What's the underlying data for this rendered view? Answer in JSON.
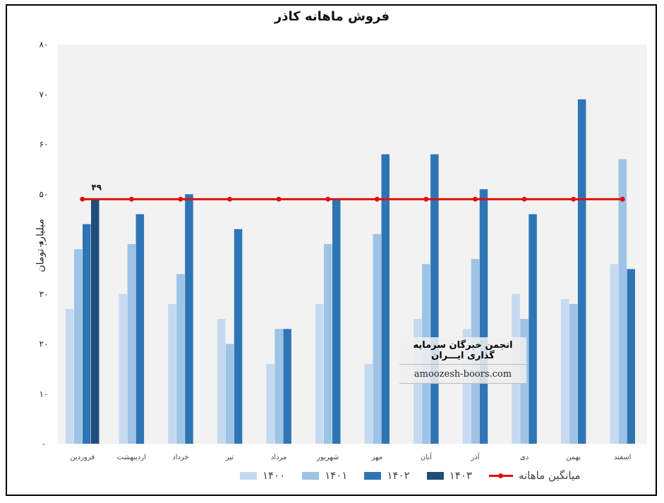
{
  "chart_data": {
    "type": "bar",
    "title": "فروش ماهانه کاذر",
    "ylabel": "میلیارد تومان",
    "xlabel": "",
    "ylim": [
      0,
      80
    ],
    "yticks": [
      0,
      10,
      20,
      30,
      40,
      50,
      60,
      70,
      80
    ],
    "ytick_labels": [
      "۰",
      "۱۰",
      "۲۰",
      "۳۰",
      "۴۰",
      "۵۰",
      "۶۰",
      "۷۰",
      "۸۰"
    ],
    "categories": [
      "فروردین",
      "اردیبهشت",
      "خرداد",
      "تیر",
      "مرداد",
      "شهریور",
      "مهر",
      "آبان",
      "آذر",
      "دی",
      "بهمن",
      "اسفند"
    ],
    "series": [
      {
        "name": "۱۴۰۰",
        "color": "#c5daf0",
        "values": [
          27,
          30,
          28,
          25,
          16,
          28,
          16,
          25,
          23,
          30,
          29,
          36
        ]
      },
      {
        "name": "۱۴۰۱",
        "color": "#9dc3e6",
        "values": [
          39,
          40,
          34,
          20,
          23,
          40,
          42,
          36,
          37,
          25,
          28,
          57
        ]
      },
      {
        "name": "۱۴۰۲",
        "color": "#2e75b6",
        "values": [
          44,
          46,
          50,
          43,
          23,
          49,
          58,
          58,
          51,
          46,
          69,
          35
        ]
      },
      {
        "name": "۱۴۰۳",
        "color": "#1f4e79",
        "values": [
          49,
          null,
          null,
          null,
          null,
          null,
          null,
          null,
          null,
          null,
          null,
          null
        ]
      }
    ],
    "average_line": {
      "name": "میانگین ماهانه",
      "value": 49,
      "label": "۴۹",
      "color": "#e0100e"
    },
    "legend_position": "bottom",
    "grid": false,
    "plot_background": "#f2f2f2"
  },
  "watermark": {
    "title": "انجمن خبرگان سرمایه گذاری ایـــران",
    "url": "amoozesh-boors.com"
  }
}
